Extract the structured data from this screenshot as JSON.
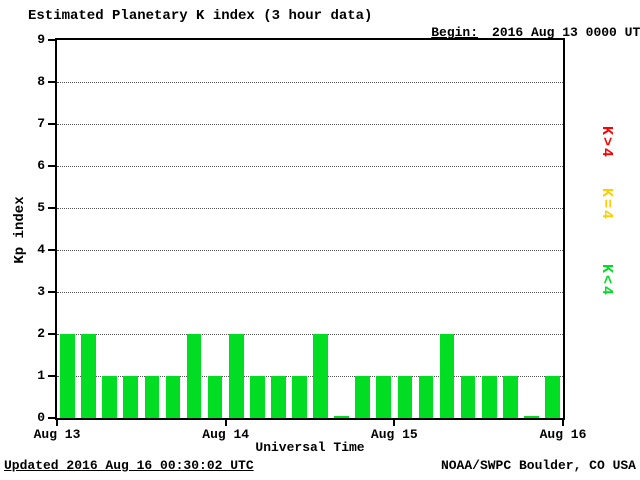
{
  "header": {
    "title": "Estimated Planetary K index (3 hour data)",
    "begin_label": "Begin:",
    "begin_value": "2016 Aug 13 0000 UTC"
  },
  "footer": {
    "updated": "Updated 2016 Aug 16 00:30:02 UTC",
    "attribution": "NOAA/SWPC Boulder, CO USA"
  },
  "legend": [
    {
      "label": "K>4",
      "color": "#ff0000"
    },
    {
      "label": "K=4",
      "color": "#ffcc00"
    },
    {
      "label": "K<4",
      "color": "#00dd22"
    }
  ],
  "chart_data": {
    "type": "bar",
    "title": "Estimated Planetary K index (3 hour data)",
    "xlabel": "Universal Time",
    "ylabel": "Kp index",
    "ylim": [
      0,
      9
    ],
    "yticks": [
      0,
      1,
      2,
      3,
      4,
      5,
      6,
      7,
      8,
      9
    ],
    "x_tick_labels": [
      "Aug 13",
      "Aug 14",
      "Aug 15",
      "Aug 16"
    ],
    "grid": "dotted-horizontal",
    "legend_position": "right",
    "bar_color": "#00dd22",
    "bar_interval_hours": 3,
    "values": [
      2,
      2,
      1,
      1,
      1,
      1,
      2,
      1,
      2,
      1,
      1,
      1,
      2,
      0,
      1,
      1,
      1,
      1,
      2,
      1,
      1,
      1,
      0,
      1
    ]
  }
}
